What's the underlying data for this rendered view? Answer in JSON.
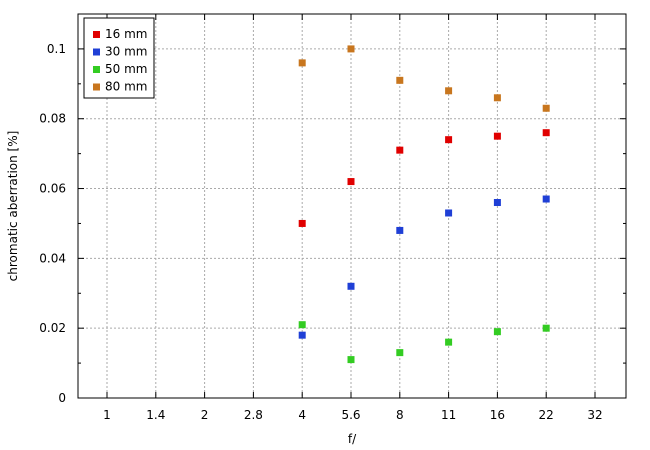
{
  "chart_data": {
    "type": "scatter",
    "xlabel": "f/",
    "ylabel": "chromatic  aberration [%]",
    "x_ticks": [
      "1",
      "1.4",
      "2",
      "2.8",
      "4",
      "5.6",
      "8",
      "11",
      "16",
      "22",
      "32"
    ],
    "y_ticks": [
      "0",
      "0.02",
      "0.04",
      "0.06",
      "0.08",
      "0.1"
    ],
    "ylim": [
      0,
      0.11
    ],
    "grid": true,
    "legend_position": "top-left",
    "series": [
      {
        "name": "16 mm",
        "color": "#e00000",
        "points": [
          [
            "4",
            0.05
          ],
          [
            "5.6",
            0.062
          ],
          [
            "8",
            0.071
          ],
          [
            "11",
            0.074
          ],
          [
            "16",
            0.075
          ],
          [
            "22",
            0.076
          ]
        ]
      },
      {
        "name": "30 mm",
        "color": "#1f3fd6",
        "points": [
          [
            "4",
            0.018
          ],
          [
            "5.6",
            0.032
          ],
          [
            "8",
            0.048
          ],
          [
            "11",
            0.053
          ],
          [
            "16",
            0.056
          ],
          [
            "22",
            0.057
          ]
        ]
      },
      {
        "name": "50 mm",
        "color": "#33cc22",
        "points": [
          [
            "4",
            0.021
          ],
          [
            "5.6",
            0.011
          ],
          [
            "8",
            0.013
          ],
          [
            "11",
            0.016
          ],
          [
            "16",
            0.019
          ],
          [
            "22",
            0.02
          ]
        ]
      },
      {
        "name": "80 mm",
        "color": "#c8761e",
        "points": [
          [
            "4",
            0.096
          ],
          [
            "5.6",
            0.1
          ],
          [
            "8",
            0.091
          ],
          [
            "11",
            0.088
          ],
          [
            "16",
            0.086
          ],
          [
            "22",
            0.083
          ]
        ]
      }
    ]
  }
}
